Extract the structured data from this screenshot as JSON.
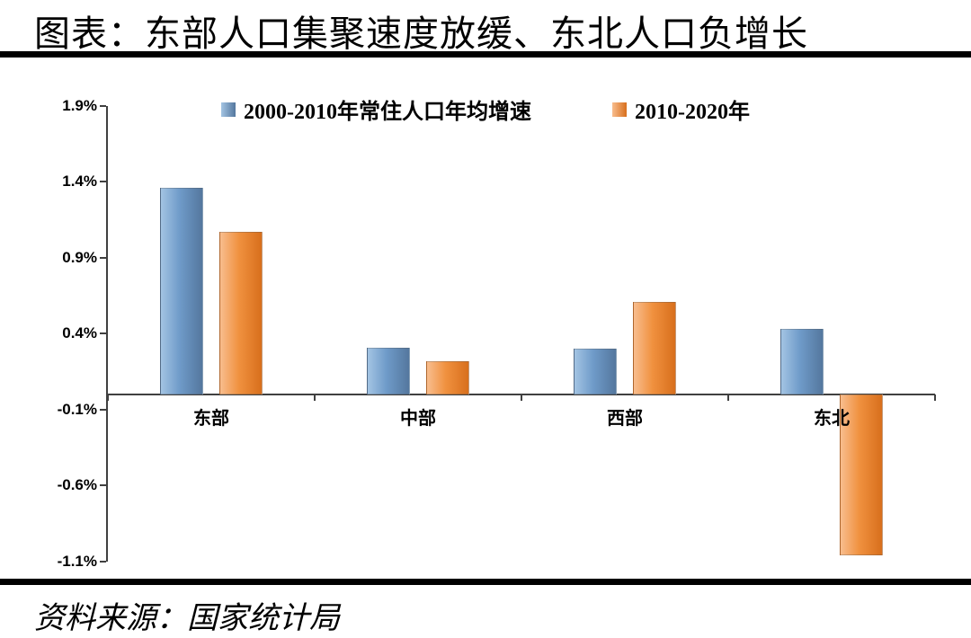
{
  "title": "图表：东部人口集聚速度放缓、东北人口负增长",
  "source": "资料来源：国家统计局",
  "chart_data": {
    "type": "bar",
    "title": "图表：东部人口集聚速度放缓、东北人口负增长",
    "categories": [
      "东部",
      "中部",
      "西部",
      "东北"
    ],
    "series": [
      {
        "name": "2000-2010年常住人口年均增速",
        "color": "#6f9bc9",
        "color_light": "#a3c4e3",
        "color_dark": "#54779e",
        "values": [
          1.36,
          0.31,
          0.3,
          0.43
        ]
      },
      {
        "name": "2010-2020年",
        "color": "#f0913f",
        "color_light": "#f8bd8e",
        "color_dark": "#d86f1c",
        "values": [
          1.07,
          0.22,
          0.61,
          -1.06
        ]
      }
    ],
    "ylabel": "",
    "xlabel": "",
    "ylim": [
      -1.1,
      1.9
    ],
    "yticks": [
      "1.9%",
      "1.4%",
      "0.9%",
      "0.4%",
      "-0.1%",
      "-0.6%",
      "-1.1%"
    ],
    "ytick_values": [
      1.9,
      1.4,
      0.9,
      0.4,
      -0.1,
      -0.6,
      -1.1
    ],
    "legend_position": "top",
    "grid": false
  }
}
